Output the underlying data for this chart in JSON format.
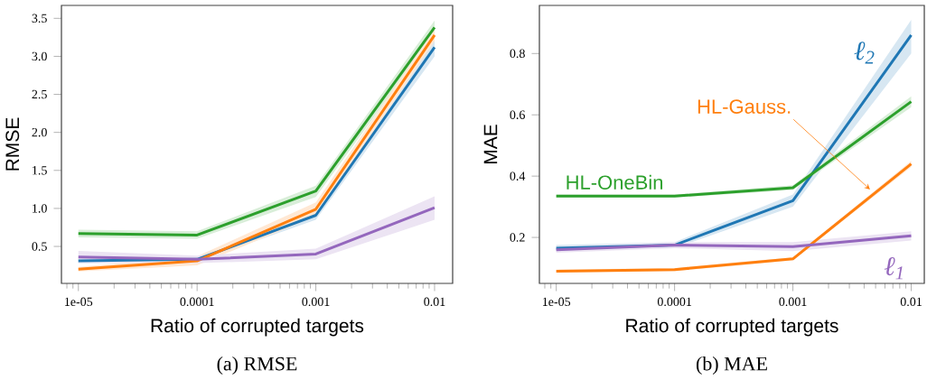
{
  "chart_data": [
    {
      "type": "line",
      "xlabel": "Ratio of corrupted targets",
      "ylabel": "RMSE",
      "annotations": [
        "(a) RMSE"
      ],
      "log": "x",
      "grid": false,
      "legend": false,
      "line_style": "solid",
      "x": [
        1e-05,
        0.0001,
        0.001,
        0.01
      ],
      "xlim": [
        7.2e-06,
        0.0142
      ],
      "ylim": [
        0.014,
        3.67
      ],
      "xticks": [
        {
          "value": 1e-05,
          "label": "1e-05"
        },
        {
          "value": 0.0001,
          "label": "0.0001"
        },
        {
          "value": 0.001,
          "label": "0.001"
        },
        {
          "value": 0.01,
          "label": "0.01"
        }
      ],
      "yticks": [
        {
          "value": 0.5,
          "label": "0.5"
        },
        {
          "value": 1.0,
          "label": "1.0"
        },
        {
          "value": 1.5,
          "label": "1.5"
        },
        {
          "value": 2.0,
          "label": "2.0"
        },
        {
          "value": 2.5,
          "label": "2.5"
        },
        {
          "value": 3.0,
          "label": "3.0"
        },
        {
          "value": 3.5,
          "label": "3.5"
        }
      ],
      "series": [
        {
          "color": "#1f77b4",
          "values": [
            0.31,
            0.33,
            0.91,
            3.12
          ],
          "lower": [
            0.28,
            0.3,
            0.85,
            3.0
          ],
          "upper": [
            0.34,
            0.36,
            0.97,
            3.24
          ]
        },
        {
          "color": "#2ca02c",
          "values": [
            0.67,
            0.65,
            1.23,
            3.38
          ],
          "lower": [
            0.62,
            0.6,
            1.15,
            3.3
          ],
          "upper": [
            0.72,
            0.7,
            1.3,
            3.47
          ]
        },
        {
          "color": "#ff7f0e",
          "values": [
            0.2,
            0.31,
            0.99,
            3.28
          ],
          "lower": [
            0.17,
            0.25,
            0.9,
            3.2
          ],
          "upper": [
            0.23,
            0.37,
            1.08,
            3.36
          ]
        },
        {
          "color": "#9467bd",
          "values": [
            0.36,
            0.33,
            0.4,
            1.01
          ],
          "lower": [
            0.28,
            0.28,
            0.33,
            0.85
          ],
          "upper": [
            0.44,
            0.38,
            0.47,
            1.16
          ]
        }
      ]
    },
    {
      "type": "line",
      "xlabel": "Ratio of corrupted targets",
      "ylabel": "MAE",
      "annotations": [
        "(b) MAE"
      ],
      "log": "x",
      "grid": false,
      "legend": false,
      "line_style": "solid",
      "x": [
        1e-05,
        0.0001,
        0.001,
        0.01
      ],
      "xlim": [
        7.2e-06,
        0.0129
      ],
      "ylim": [
        0.05,
        0.957
      ],
      "xticks": [
        {
          "value": 1e-05,
          "label": "1e-05"
        },
        {
          "value": 0.0001,
          "label": "0.0001"
        },
        {
          "value": 0.001,
          "label": "0.001"
        },
        {
          "value": 0.01,
          "label": "0.01"
        }
      ],
      "yticks": [
        {
          "value": 0.2,
          "label": "0.2"
        },
        {
          "value": 0.4,
          "label": "0.4"
        },
        {
          "value": 0.6,
          "label": "0.6"
        },
        {
          "value": 0.8,
          "label": "0.8"
        }
      ],
      "series": [
        {
          "name": "ℓ$_{2}$",
          "color": "#1f77b4",
          "values": [
            0.165,
            0.175,
            0.32,
            0.86
          ],
          "lower": [
            0.155,
            0.165,
            0.3,
            0.8
          ],
          "upper": [
            0.175,
            0.185,
            0.34,
            0.91
          ]
        },
        {
          "name": "HL-OneBin",
          "color": "#2ca02c",
          "values": [
            0.335,
            0.335,
            0.362,
            0.643
          ],
          "lower": [
            0.33,
            0.33,
            0.355,
            0.625
          ],
          "upper": [
            0.34,
            0.34,
            0.37,
            0.66
          ]
        },
        {
          "name": "HL-Gauss.",
          "color": "#ff7f0e",
          "values": [
            0.09,
            0.095,
            0.13,
            0.44
          ],
          "lower": [
            0.085,
            0.09,
            0.125,
            0.43
          ],
          "upper": [
            0.095,
            0.1,
            0.135,
            0.45
          ]
        },
        {
          "name": "ℓ$_{1}$",
          "color": "#9467bd",
          "values": [
            0.16,
            0.175,
            0.17,
            0.205
          ],
          "lower": [
            0.15,
            0.165,
            0.155,
            0.19
          ],
          "upper": [
            0.17,
            0.185,
            0.185,
            0.22
          ]
        }
      ]
    }
  ]
}
